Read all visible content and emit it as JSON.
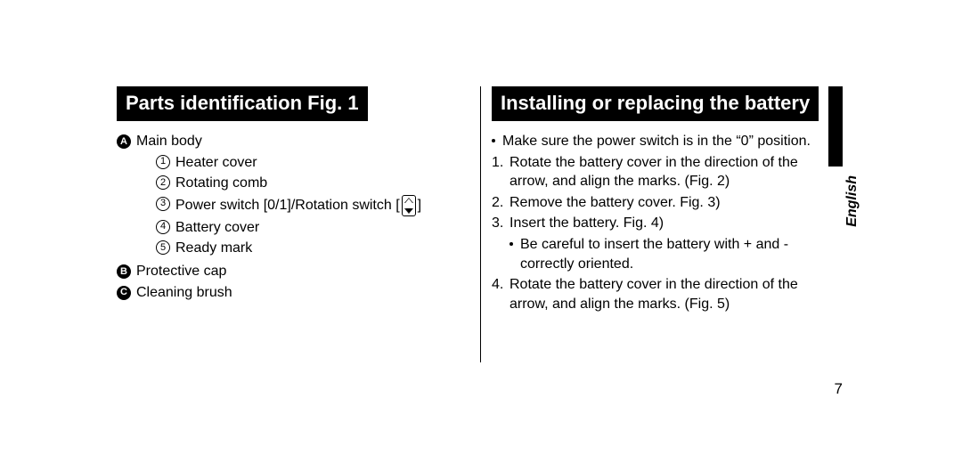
{
  "language_tab": "English",
  "page_number": "7",
  "left": {
    "heading": "Parts identification Fig. 1",
    "items": [
      {
        "letter": "A",
        "label": "Main body",
        "sub": [
          {
            "n": "1",
            "text": "Heater cover"
          },
          {
            "n": "2",
            "text": "Rotating comb"
          },
          {
            "n": "3",
            "text_prefix": "Power switch [0/1]/Rotation switch [",
            "text_suffix": "]"
          },
          {
            "n": "4",
            "text": "Battery cover"
          },
          {
            "n": "5",
            "text": "Ready mark"
          }
        ]
      },
      {
        "letter": "B",
        "label": "Protective cap"
      },
      {
        "letter": "C",
        "label": "Cleaning brush"
      }
    ]
  },
  "right": {
    "heading": "Installing or replacing the battery",
    "intro": "Make sure the power switch is in the “0” position.",
    "steps": [
      {
        "n": "1.",
        "text": "Rotate the battery cover in the direction of the arrow, and align the marks. (Fig. 2)"
      },
      {
        "n": "2.",
        "text": "Remove the battery cover. Fig. 3)"
      },
      {
        "n": "3.",
        "text": "Insert the battery. Fig. 4)",
        "sub_bullet": "Be careful to insert the battery with + and - correctly oriented."
      },
      {
        "n": "4.",
        "text": "Rotate the battery cover in the direction of the arrow, and align the marks. (Fig. 5)"
      }
    ]
  }
}
